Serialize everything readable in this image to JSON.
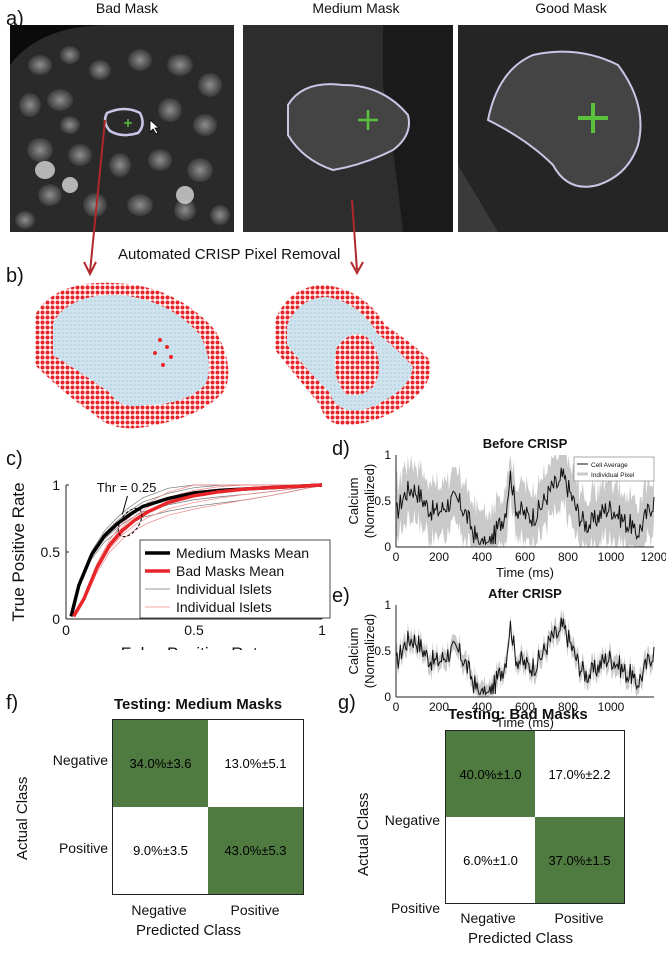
{
  "panels": {
    "a": "a)",
    "b": "b)",
    "c": "c)",
    "d": "d)",
    "e": "e)",
    "f": "f)",
    "g": "g)"
  },
  "panel_a": {
    "titles": [
      "Bad Mask",
      "Medium Mask",
      "Good Mask"
    ]
  },
  "panel_b": {
    "title": "Automated CRISP Pixel Removal"
  },
  "colors": {
    "red": "#e8262a",
    "light_blue": "#cfe3ee",
    "green_cross": "#59c13a",
    "cm_green": "#4f7a40",
    "mask_outline": "#c8c8e6"
  },
  "chart_data": [
    {
      "type": "line",
      "panel": "c",
      "xlabel": "False Positive Rate",
      "ylabel": "True Positive Rate",
      "xlim": [
        0,
        1
      ],
      "ylim": [
        0,
        1
      ],
      "xticks": [
        "0",
        "0.5",
        "1"
      ],
      "yticks": [
        "0",
        "0.5",
        "1"
      ],
      "annotation": "Thr = 0.25",
      "legend": [
        "Medium Masks Mean",
        "Bad Masks Mean",
        "Individual Islets",
        "Individual Islets"
      ],
      "series": [
        {
          "name": "Medium Masks Mean",
          "color": "#000000",
          "x": [
            0.02,
            0.05,
            0.1,
            0.15,
            0.2,
            0.25,
            0.3,
            0.4,
            0.5,
            0.6,
            0.7,
            0.8,
            0.9,
            1.0
          ],
          "y": [
            0.02,
            0.25,
            0.48,
            0.62,
            0.71,
            0.78,
            0.84,
            0.9,
            0.94,
            0.96,
            0.97,
            0.98,
            0.99,
            1.0
          ]
        },
        {
          "name": "Bad Masks Mean",
          "color": "#e8262a",
          "x": [
            0.03,
            0.07,
            0.12,
            0.17,
            0.22,
            0.27,
            0.32,
            0.4,
            0.5,
            0.6,
            0.7,
            0.8,
            0.9,
            1.0
          ],
          "y": [
            0.02,
            0.15,
            0.38,
            0.55,
            0.66,
            0.74,
            0.8,
            0.87,
            0.92,
            0.95,
            0.97,
            0.98,
            0.99,
            1.0
          ]
        }
      ]
    },
    {
      "type": "line",
      "panel": "d",
      "title": "Before CRISP",
      "xlabel": "Time (ms)",
      "ylabel": "Calcium (Normalized)",
      "xlim": [
        0,
        1200
      ],
      "ylim": [
        0,
        1
      ],
      "xticks": [
        "0",
        "200",
        "400",
        "600",
        "800",
        "1000",
        "1200"
      ],
      "yticks": [
        "0",
        "0.5",
        "1"
      ],
      "legend": [
        "Cell Average",
        "Individual Pixel"
      ]
    },
    {
      "type": "line",
      "panel": "e",
      "title": "After CRISP",
      "xlabel": "Time (ms)",
      "ylabel": "Calcium (Normalized)",
      "xlim": [
        0,
        1200
      ],
      "ylim": [
        0,
        1
      ],
      "xticks": [
        "0",
        "200",
        "400",
        "600",
        "800",
        "1000"
      ],
      "yticks": [
        "0",
        "0.5",
        "1"
      ]
    },
    {
      "type": "table",
      "panel": "f",
      "title": "Testing: Medium Masks",
      "row_labels": [
        "Negative",
        "Positive"
      ],
      "col_labels": [
        "Negative",
        "Positive"
      ],
      "ylabel": "Actual Class",
      "xlabel": "Predicted Class",
      "cells": [
        [
          "34.0%±3.6",
          "13.0%±5.1"
        ],
        [
          "9.0%±3.5",
          "43.0%±5.3"
        ]
      ]
    },
    {
      "type": "table",
      "panel": "g",
      "title": "Testing: Bad Masks",
      "row_labels": [
        "Negative",
        "Positive"
      ],
      "col_labels": [
        "Negative",
        "Positive"
      ],
      "ylabel": "Actual Class",
      "xlabel": "Predicted Class",
      "cells": [
        [
          "40.0%±1.0",
          "17.0%±2.2"
        ],
        [
          "6.0%±1.0",
          "37.0%±1.5"
        ]
      ]
    }
  ]
}
